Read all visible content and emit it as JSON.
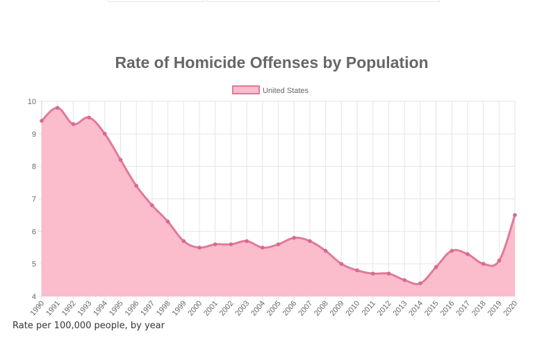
{
  "chart_data": {
    "type": "area",
    "title": "Rate of Homicide Offenses by Population",
    "legend": {
      "position": "top",
      "entries": [
        "United States"
      ]
    },
    "categories": [
      "1990",
      "1991",
      "1992",
      "1993",
      "1994",
      "1995",
      "1996",
      "1997",
      "1998",
      "1999",
      "2000",
      "2001",
      "2002",
      "2003",
      "2004",
      "2005",
      "2006",
      "2007",
      "2008",
      "2009",
      "2010",
      "2011",
      "2012",
      "2013",
      "2014",
      "2015",
      "2016",
      "2017",
      "2018",
      "2019",
      "2020"
    ],
    "series": [
      {
        "name": "United States",
        "values": [
          9.4,
          9.8,
          9.3,
          9.5,
          9.0,
          8.2,
          7.4,
          6.8,
          6.3,
          5.7,
          5.5,
          5.6,
          5.6,
          5.7,
          5.5,
          5.6,
          5.8,
          5.7,
          5.4,
          5.0,
          4.8,
          4.7,
          4.7,
          4.5,
          4.4,
          4.9,
          5.4,
          5.3,
          5.0,
          5.1,
          6.5
        ],
        "line_color": "#e0799a",
        "fill_color": "#fbbccc"
      }
    ],
    "ylim": [
      4,
      10
    ],
    "yticks": [
      "4",
      "5",
      "6",
      "7",
      "8",
      "9",
      "10"
    ],
    "grid": true
  },
  "caption": "Rate per 100,000 people, by year"
}
